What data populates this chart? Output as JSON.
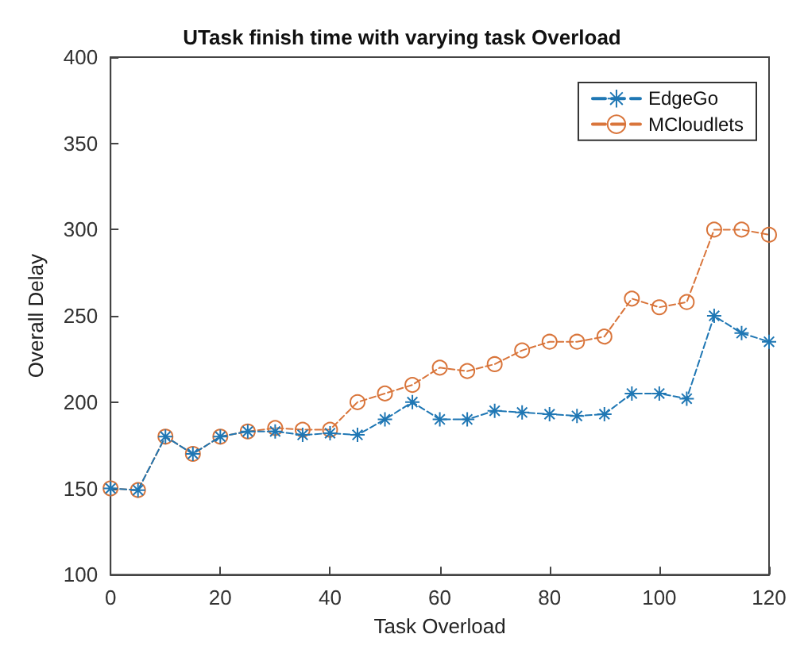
{
  "chart_data": {
    "type": "line",
    "title": "UTask finish time with varying task Overload",
    "xlabel": "Task Overload",
    "ylabel": "Overall Delay",
    "x": [
      0,
      5,
      10,
      15,
      20,
      25,
      30,
      35,
      40,
      45,
      50,
      55,
      60,
      65,
      70,
      75,
      80,
      85,
      90,
      95,
      100,
      105,
      110,
      115,
      120
    ],
    "series": [
      {
        "name": "EdgeGo",
        "color": "#1f77b4",
        "marker": "cross",
        "values": [
          150,
          149,
          180,
          170,
          180,
          183,
          183,
          181,
          182,
          181,
          190,
          200,
          190,
          190,
          195,
          194,
          193,
          192,
          193,
          205,
          205,
          202,
          250,
          240,
          235
        ]
      },
      {
        "name": "MCloudlets",
        "color": "#d9753b",
        "marker": "circle",
        "values": [
          150,
          149,
          180,
          170,
          180,
          183,
          185,
          184,
          184,
          200,
          205,
          210,
          220,
          218,
          222,
          230,
          235,
          235,
          238,
          260,
          255,
          258,
          300,
          300,
          297
        ]
      }
    ],
    "line_style": "dashed",
    "legend": "top right",
    "grid": false,
    "xlim": [
      0,
      120
    ],
    "xticks": [
      0,
      20,
      40,
      60,
      80,
      100,
      120
    ],
    "ylim": [
      100,
      400
    ],
    "yticks": [
      100,
      150,
      200,
      250,
      300,
      350,
      400
    ]
  }
}
